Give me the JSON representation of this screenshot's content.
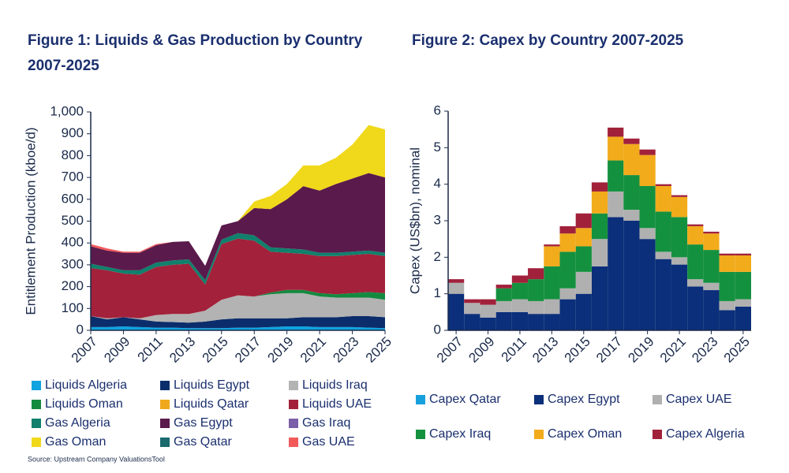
{
  "chart_data": [
    {
      "type": "area",
      "title": "Figure 1: Liquids & Gas Production by Country 2007-2025",
      "y_label": "Entitlement Production (kboe/d)",
      "x": [
        2007,
        2008,
        2009,
        2010,
        2011,
        2012,
        2013,
        2014,
        2015,
        2016,
        2017,
        2018,
        2019,
        2020,
        2021,
        2022,
        2023,
        2024,
        2025
      ],
      "xlim": [
        2007,
        2025
      ],
      "xticks": [
        2007,
        2009,
        2011,
        2013,
        2015,
        2017,
        2019,
        2021,
        2023,
        2025
      ],
      "ylim": [
        0,
        1000
      ],
      "yticks": [
        0,
        100,
        200,
        300,
        400,
        500,
        600,
        700,
        800,
        900,
        {
          "value": 1000,
          "label": "1,000"
        }
      ],
      "stacked": true,
      "grid": false,
      "series": [
        {
          "name": "Liquids Algeria",
          "color": "#0fa3df",
          "values": [
            15,
            15,
            18,
            15,
            12,
            12,
            10,
            10,
            10,
            12,
            12,
            15,
            18,
            18,
            15,
            15,
            15,
            12,
            10
          ]
        },
        {
          "name": "Liquids Egypt",
          "color": "#0b2d6b",
          "values": [
            50,
            35,
            42,
            35,
            28,
            26,
            25,
            30,
            40,
            43,
            43,
            40,
            37,
            42,
            45,
            45,
            50,
            53,
            50
          ]
        },
        {
          "name": "Liquids Iraq",
          "color": "#b3b3b3",
          "values": [
            0,
            5,
            0,
            5,
            30,
            37,
            40,
            50,
            90,
            105,
            100,
            110,
            115,
            110,
            95,
            90,
            85,
            85,
            80
          ]
        },
        {
          "name": "Liquids Oman",
          "color": "#148a3f",
          "values": [
            0,
            0,
            0,
            0,
            0,
            0,
            0,
            0,
            0,
            0,
            0,
            8,
            15,
            15,
            15,
            15,
            20,
            25,
            30
          ]
        },
        {
          "name": "Liquids Qatar",
          "color": "#f0a81c",
          "values": [
            0,
            0,
            0,
            0,
            0,
            0,
            0,
            0,
            0,
            0,
            0,
            0,
            0,
            0,
            0,
            0,
            0,
            0,
            0
          ]
        },
        {
          "name": "Liquids UAE",
          "color": "#a3213a",
          "values": [
            220,
            220,
            200,
            200,
            220,
            225,
            230,
            120,
            255,
            260,
            255,
            187,
            170,
            165,
            170,
            175,
            175,
            175,
            170
          ]
        },
        {
          "name": "Gas Algeria",
          "color": "#10806c",
          "values": [
            20,
            15,
            15,
            20,
            20,
            20,
            20,
            20,
            20,
            25,
            25,
            20,
            20,
            20,
            15,
            15,
            15,
            15,
            15
          ]
        },
        {
          "name": "Gas Egypt",
          "color": "#5a1a4b",
          "values": [
            80,
            75,
            80,
            80,
            80,
            85,
            83,
            65,
            65,
            55,
            125,
            175,
            225,
            290,
            285,
            315,
            335,
            355,
            345
          ]
        },
        {
          "name": "Gas Iraq",
          "color": "#7a5ea8",
          "values": [
            0,
            0,
            0,
            0,
            0,
            0,
            0,
            0,
            0,
            0,
            0,
            0,
            0,
            0,
            0,
            0,
            0,
            0,
            0
          ]
        },
        {
          "name": "Gas Oman",
          "color": "#f0d81a",
          "values": [
            0,
            0,
            0,
            0,
            0,
            0,
            0,
            0,
            0,
            0,
            30,
            60,
            70,
            95,
            115,
            120,
            155,
            220,
            220
          ]
        },
        {
          "name": "Gas Qatar",
          "color": "#1a6a6e",
          "values": [
            0,
            0,
            0,
            0,
            0,
            0,
            0,
            0,
            0,
            0,
            0,
            0,
            0,
            0,
            0,
            0,
            0,
            0,
            0
          ]
        },
        {
          "name": "Gas UAE",
          "color": "#f25a5a",
          "values": [
            10,
            10,
            5,
            5,
            5,
            0,
            0,
            0,
            0,
            0,
            0,
            0,
            0,
            0,
            0,
            0,
            0,
            0,
            0
          ]
        }
      ]
    },
    {
      "type": "bar",
      "title": "Figure 2: Capex by Country 2007-2025",
      "y_label": "Capex (US$bn), nominal",
      "x": [
        2007,
        2008,
        2009,
        2010,
        2011,
        2012,
        2013,
        2014,
        2015,
        2016,
        2017,
        2018,
        2019,
        2020,
        2021,
        2022,
        2023,
        2024,
        2025
      ],
      "xticks": [
        2007,
        2009,
        2011,
        2013,
        2015,
        2017,
        2019,
        2021,
        2023,
        2025
      ],
      "ylim": [
        0,
        6
      ],
      "yticks": [
        0,
        1,
        2,
        3,
        4,
        5,
        6
      ],
      "stacked": true,
      "grid": false,
      "series": [
        {
          "name": "Capex Qatar",
          "color": "#18a0dc",
          "values": [
            0,
            0,
            0,
            0,
            0,
            0,
            0,
            0,
            0,
            0,
            0,
            0,
            0,
            0,
            0,
            0,
            0,
            0,
            0
          ]
        },
        {
          "name": "Capex Egypt",
          "color": "#0b2f7a",
          "values": [
            1.0,
            0.45,
            0.35,
            0.5,
            0.5,
            0.45,
            0.45,
            0.85,
            1.0,
            1.75,
            3.1,
            3.0,
            2.5,
            1.95,
            1.8,
            1.2,
            1.1,
            0.55,
            0.65
          ]
        },
        {
          "name": "Capex UAE",
          "color": "#b0b0b0",
          "values": [
            0.3,
            0.3,
            0.35,
            0.3,
            0.35,
            0.35,
            0.4,
            0.3,
            0.6,
            0.75,
            0.7,
            0.3,
            0.3,
            0.2,
            0.2,
            0.2,
            0.2,
            0.25,
            0.2
          ]
        },
        {
          "name": "Capex Iraq",
          "color": "#14913f",
          "values": [
            0,
            0,
            0,
            0.35,
            0.45,
            0.6,
            0.9,
            1.0,
            0.7,
            0.7,
            0.85,
            0.95,
            1.15,
            1.1,
            1.1,
            0.95,
            0.9,
            0.8,
            0.75
          ]
        },
        {
          "name": "Capex Oman",
          "color": "#f2ab1b",
          "values": [
            0,
            0,
            0,
            0,
            0,
            0,
            0.55,
            0.5,
            0.5,
            0.6,
            0.65,
            0.85,
            0.85,
            0.7,
            0.55,
            0.5,
            0.45,
            0.45,
            0.45
          ]
        },
        {
          "name": "Capex Algeria",
          "color": "#a1213b",
          "values": [
            0.1,
            0.1,
            0.15,
            0.1,
            0.2,
            0.3,
            0.05,
            0.2,
            0.4,
            0.25,
            0.25,
            0.15,
            0.15,
            0.05,
            0.05,
            0.05,
            0.05,
            0.05,
            0.05
          ]
        }
      ]
    }
  ],
  "source": "Source: Upstream Company ValuationsTool"
}
